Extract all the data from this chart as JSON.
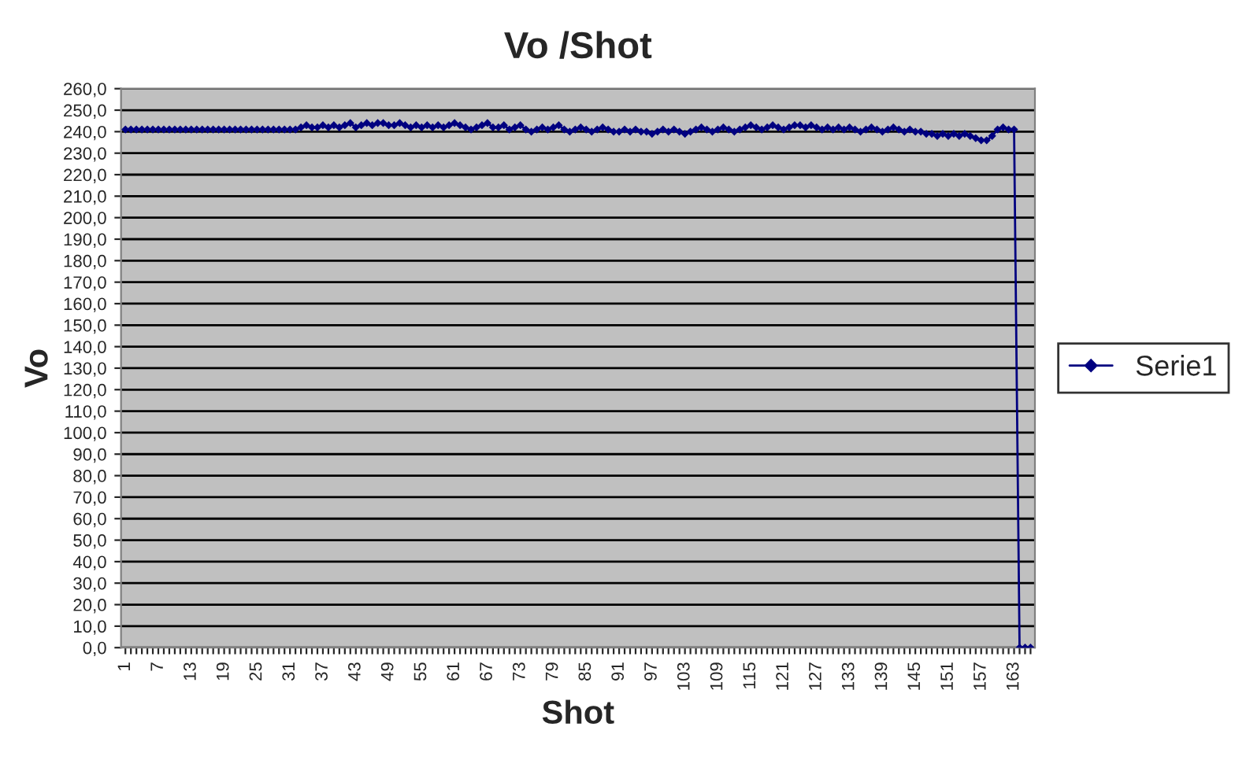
{
  "chart_data": {
    "type": "line",
    "title": "Vo /Shot",
    "xlabel": "Shot",
    "ylabel": "Vo",
    "categories": [
      "1",
      null,
      null,
      null,
      null,
      null,
      "7",
      null,
      null,
      null,
      null,
      null,
      "13",
      null,
      null,
      null,
      null,
      null,
      "19",
      null,
      null,
      null,
      null,
      null,
      "25",
      null,
      null,
      null,
      null,
      null,
      "31",
      null,
      null,
      null,
      null,
      null,
      "37",
      null,
      null,
      null,
      null,
      null,
      "43",
      null,
      null,
      null,
      null,
      null,
      "49",
      null,
      null,
      null,
      null,
      null,
      "55",
      null,
      null,
      null,
      null,
      null,
      "61",
      null,
      null,
      null,
      null,
      null,
      "67",
      null,
      null,
      null,
      null,
      null,
      "73",
      null,
      null,
      null,
      null,
      null,
      "79",
      null,
      null,
      null,
      null,
      null,
      "85",
      null,
      null,
      null,
      null,
      null,
      "91",
      null,
      null,
      null,
      null,
      null,
      "97",
      null,
      null,
      null,
      null,
      null,
      "103",
      null,
      null,
      null,
      null,
      null,
      "109",
      null,
      null,
      null,
      null,
      null,
      "115",
      null,
      null,
      null,
      null,
      null,
      "121",
      null,
      null,
      null,
      null,
      null,
      "127",
      null,
      null,
      null,
      null,
      null,
      "133",
      null,
      null,
      null,
      null,
      null,
      "139",
      null,
      null,
      null,
      null,
      null,
      "145",
      null,
      null,
      null,
      null,
      null,
      "151",
      null,
      null,
      null,
      null,
      null,
      "157",
      null,
      null,
      null,
      null,
      null,
      "163",
      null,
      null,
      null
    ],
    "series": [
      {
        "name": "Serie1",
        "color": "#000080",
        "values": [
          241,
          241,
          241,
          241,
          241,
          241,
          241,
          241,
          241,
          241,
          241,
          241,
          241,
          241,
          241,
          241,
          241,
          241,
          241,
          241,
          241,
          241,
          241,
          241,
          241,
          241,
          241,
          241,
          241,
          241,
          241,
          241,
          242,
          243,
          242,
          242,
          243,
          242,
          243,
          242,
          243,
          244,
          242,
          243,
          244,
          243,
          244,
          244,
          243,
          243,
          244,
          243,
          242,
          243,
          242,
          243,
          242,
          243,
          242,
          243,
          244,
          243,
          242,
          241,
          242,
          243,
          244,
          242,
          242,
          243,
          241,
          242,
          243,
          241,
          240,
          241,
          242,
          241,
          242,
          243,
          241,
          240,
          241,
          242,
          241,
          240,
          241,
          242,
          241,
          240,
          240,
          241,
          240,
          241,
          240,
          240,
          239,
          240,
          241,
          240,
          241,
          240,
          239,
          240,
          241,
          242,
          241,
          240,
          241,
          242,
          241,
          240,
          241,
          242,
          243,
          242,
          241,
          242,
          243,
          242,
          241,
          242,
          243,
          243,
          242,
          243,
          242,
          241,
          242,
          241,
          242,
          241,
          242,
          241,
          240,
          241,
          242,
          241,
          240,
          241,
          242,
          241,
          240,
          241,
          240,
          240,
          239,
          239,
          238,
          239,
          238,
          239,
          238,
          239,
          238,
          237,
          236,
          236,
          238,
          241,
          242,
          241,
          241,
          0,
          0,
          0
        ]
      }
    ],
    "ylim": [
      0,
      260
    ],
    "yticks": [
      {
        "value": 0,
        "label": "0,0"
      },
      {
        "value": 10,
        "label": "10,0"
      },
      {
        "value": 20,
        "label": "20,0"
      },
      {
        "value": 30,
        "label": "30,0"
      },
      {
        "value": 40,
        "label": "40,0"
      },
      {
        "value": 50,
        "label": "50,0"
      },
      {
        "value": 60,
        "label": "60,0"
      },
      {
        "value": 70,
        "label": "70,0"
      },
      {
        "value": 80,
        "label": "80,0"
      },
      {
        "value": 90,
        "label": "90,0"
      },
      {
        "value": 100,
        "label": "100,0"
      },
      {
        "value": 110,
        "label": "110,0"
      },
      {
        "value": 120,
        "label": "120,0"
      },
      {
        "value": 130,
        "label": "130,0"
      },
      {
        "value": 140,
        "label": "140,0"
      },
      {
        "value": 150,
        "label": "150,0"
      },
      {
        "value": 160,
        "label": "160,0"
      },
      {
        "value": 170,
        "label": "170,0"
      },
      {
        "value": 180,
        "label": "180,0"
      },
      {
        "value": 190,
        "label": "190,0"
      },
      {
        "value": 200,
        "label": "200,0"
      },
      {
        "value": 210,
        "label": "210,0"
      },
      {
        "value": 220,
        "label": "220,0"
      },
      {
        "value": 230,
        "label": "230,0"
      },
      {
        "value": 240,
        "label": "240,0"
      },
      {
        "value": 250,
        "label": "250,0"
      },
      {
        "value": 260,
        "label": "260,0"
      }
    ],
    "grid": "y",
    "legend": "right",
    "marker": "diamond",
    "line_style": "solid"
  }
}
